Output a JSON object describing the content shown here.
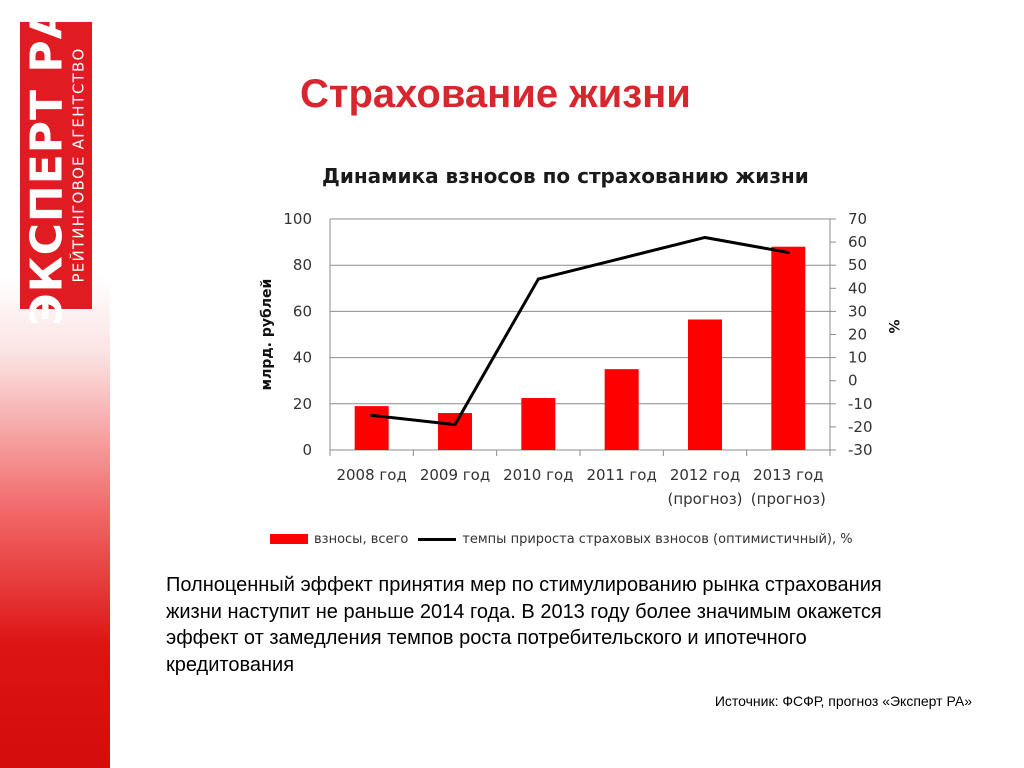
{
  "logo": {
    "main": "ЭКСПЕРТ РА",
    "sub": "РЕЙТИНГОВОЕ АГЕНТСТВО"
  },
  "page_title": "Страхование жизни",
  "colors": {
    "brand_red": "#e11b22",
    "title_red": "#d7262e",
    "bar_red": "#ff0000",
    "line_black": "#000000"
  },
  "chart_data": {
    "type": "bar",
    "title": "Динамика взносов по страхованию жизни",
    "categories": [
      [
        "2008 год"
      ],
      [
        "2009 год"
      ],
      [
        "2010 год"
      ],
      [
        "2011 год"
      ],
      [
        "2012 год",
        "(прогноз)"
      ],
      [
        "2013 год",
        "(прогноз)"
      ]
    ],
    "series": [
      {
        "name": "взносы, всего",
        "type": "bar",
        "axis": "left",
        "color": "#ff0000",
        "values": [
          19,
          16,
          22.5,
          35,
          56.5,
          88
        ]
      },
      {
        "name": "темпы прироста страховых взносов (оптимистичный), %",
        "type": "line",
        "axis": "right",
        "color": "#000000",
        "values": [
          -15,
          -19,
          44,
          53,
          62,
          55.5
        ]
      }
    ],
    "ylabel": "млрд. рублей",
    "y2label": "%",
    "ylim": [
      0,
      100
    ],
    "yticks": [
      0,
      20,
      40,
      60,
      80,
      100
    ],
    "y2lim": [
      -30,
      70
    ],
    "y2ticks": [
      -30,
      -20,
      -10,
      0,
      10,
      20,
      30,
      40,
      50,
      60,
      70
    ],
    "grid": true,
    "legend": "bottom"
  },
  "description": "Полноценный эффект принятия мер по стимулированию рынка страхования жизни наступит не раньше 2014 года. В 2013 году более значимым окажется эффект от замедления темпов роста потребительского и ипотечного кредитования",
  "source": "Источник: ФСФР, прогноз «Эксперт РА»"
}
